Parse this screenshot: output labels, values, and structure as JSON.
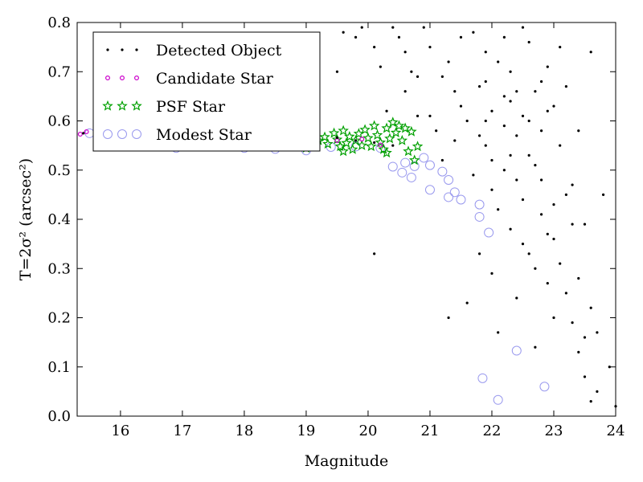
{
  "chart_data": {
    "type": "scatter",
    "title": "",
    "xlabel": "Magnitude",
    "ylabel": "T=2σ² (arcsec²)",
    "xlim": [
      15.3,
      24.0
    ],
    "ylim": [
      0.0,
      0.8
    ],
    "xticks": [
      "16",
      "17",
      "18",
      "19",
      "20",
      "21",
      "22",
      "23",
      "24"
    ],
    "yticks": [
      "0.0",
      "0.1",
      "0.2",
      "0.3",
      "0.4",
      "0.5",
      "0.6",
      "0.7",
      "0.8"
    ],
    "grid": false,
    "legend_position": "top-left",
    "series": [
      {
        "name": "Detected Object",
        "marker": "dot",
        "color": "#000000",
        "points": [
          [
            15.4,
            0.575
          ],
          [
            15.7,
            0.571
          ],
          [
            16.0,
            0.572
          ],
          [
            16.5,
            0.568
          ],
          [
            16.9,
            0.562
          ],
          [
            17.3,
            0.565
          ],
          [
            17.8,
            0.56
          ],
          [
            18.2,
            0.563
          ],
          [
            18.6,
            0.556
          ],
          [
            19.0,
            0.552
          ],
          [
            19.2,
            0.558
          ],
          [
            19.5,
            0.566
          ],
          [
            19.8,
            0.56
          ],
          [
            20.1,
            0.556
          ],
          [
            20.4,
            0.55
          ],
          [
            19.2,
            0.68
          ],
          [
            19.5,
            0.7
          ],
          [
            19.6,
            0.78
          ],
          [
            19.8,
            0.77
          ],
          [
            19.9,
            0.79
          ],
          [
            20.1,
            0.75
          ],
          [
            20.1,
            0.33
          ],
          [
            20.2,
            0.71
          ],
          [
            20.3,
            0.62
          ],
          [
            20.4,
            0.79
          ],
          [
            20.5,
            0.77
          ],
          [
            20.6,
            0.74
          ],
          [
            20.7,
            0.7
          ],
          [
            20.8,
            0.61
          ],
          [
            20.9,
            0.79
          ],
          [
            20.6,
            0.66
          ],
          [
            20.8,
            0.69
          ],
          [
            21.0,
            0.75
          ],
          [
            21.0,
            0.61
          ],
          [
            21.1,
            0.58
          ],
          [
            21.2,
            0.52
          ],
          [
            21.3,
            0.72
          ],
          [
            21.3,
            0.2
          ],
          [
            21.4,
            0.66
          ],
          [
            21.5,
            0.77
          ],
          [
            21.6,
            0.6
          ],
          [
            21.6,
            0.23
          ],
          [
            21.7,
            0.49
          ],
          [
            21.8,
            0.67
          ],
          [
            21.8,
            0.33
          ],
          [
            21.9,
            0.74
          ],
          [
            21.9,
            0.55
          ],
          [
            22.0,
            0.62
          ],
          [
            22.0,
            0.29
          ],
          [
            22.1,
            0.17
          ],
          [
            22.1,
            0.42
          ],
          [
            22.2,
            0.65
          ],
          [
            22.2,
            0.5
          ],
          [
            22.3,
            0.7
          ],
          [
            22.3,
            0.38
          ],
          [
            22.4,
            0.57
          ],
          [
            22.4,
            0.24
          ],
          [
            22.5,
            0.61
          ],
          [
            22.5,
            0.44
          ],
          [
            22.6,
            0.76
          ],
          [
            22.6,
            0.53
          ],
          [
            22.6,
            0.33
          ],
          [
            22.7,
            0.66
          ],
          [
            22.7,
            0.14
          ],
          [
            22.8,
            0.48
          ],
          [
            22.8,
            0.58
          ],
          [
            22.9,
            0.71
          ],
          [
            22.9,
            0.37
          ],
          [
            22.9,
            0.27
          ],
          [
            23.0,
            0.63
          ],
          [
            23.0,
            0.43
          ],
          [
            23.0,
            0.2
          ],
          [
            23.1,
            0.55
          ],
          [
            23.1,
            0.31
          ],
          [
            23.2,
            0.67
          ],
          [
            23.2,
            0.25
          ],
          [
            23.3,
            0.47
          ],
          [
            23.3,
            0.19
          ],
          [
            23.4,
            0.58
          ],
          [
            23.4,
            0.13
          ],
          [
            23.5,
            0.39
          ],
          [
            23.5,
            0.08
          ],
          [
            23.6,
            0.74
          ],
          [
            23.6,
            0.22
          ],
          [
            23.7,
            0.05
          ],
          [
            23.7,
            0.17
          ],
          [
            23.8,
            0.45
          ],
          [
            23.9,
            0.1
          ],
          [
            24.0,
            0.02
          ],
          [
            23.6,
            0.03
          ],
          [
            21.9,
            0.68
          ],
          [
            22.1,
            0.72
          ],
          [
            22.3,
            0.53
          ],
          [
            22.5,
            0.79
          ],
          [
            22.2,
            0.59
          ],
          [
            22.8,
            0.41
          ],
          [
            23.0,
            0.36
          ],
          [
            21.5,
            0.63
          ],
          [
            21.7,
            0.78
          ],
          [
            22.0,
            0.46
          ],
          [
            22.4,
            0.66
          ],
          [
            22.7,
            0.51
          ],
          [
            23.2,
            0.45
          ],
          [
            23.4,
            0.28
          ],
          [
            22.6,
            0.6
          ],
          [
            21.2,
            0.69
          ],
          [
            21.4,
            0.56
          ],
          [
            21.9,
            0.6
          ],
          [
            22.2,
            0.77
          ],
          [
            22.3,
            0.64
          ],
          [
            22.9,
            0.62
          ],
          [
            23.1,
            0.75
          ],
          [
            22.5,
            0.35
          ],
          [
            22.7,
            0.3
          ],
          [
            22.0,
            0.52
          ],
          [
            21.8,
            0.57
          ],
          [
            22.4,
            0.48
          ],
          [
            22.8,
            0.68
          ],
          [
            23.3,
            0.39
          ],
          [
            23.5,
            0.16
          ]
        ]
      },
      {
        "name": "Candidate Star",
        "marker": "ring-small",
        "color": "#cc00cc",
        "points": [
          [
            15.35,
            0.573
          ],
          [
            15.45,
            0.578
          ],
          [
            15.7,
            0.575
          ],
          [
            16.1,
            0.571
          ],
          [
            16.6,
            0.568
          ],
          [
            17.1,
            0.566
          ],
          [
            17.6,
            0.563
          ],
          [
            18.1,
            0.561
          ],
          [
            18.6,
            0.559
          ],
          [
            19.1,
            0.557
          ],
          [
            19.5,
            0.56
          ],
          [
            19.9,
            0.563
          ],
          [
            20.2,
            0.551
          ]
        ]
      },
      {
        "name": "PSF Star",
        "marker": "star",
        "color": "#00a000",
        "points": [
          [
            19.0,
            0.545
          ],
          [
            19.1,
            0.552
          ],
          [
            19.2,
            0.56
          ],
          [
            19.3,
            0.567
          ],
          [
            19.35,
            0.553
          ],
          [
            19.45,
            0.575
          ],
          [
            19.5,
            0.562
          ],
          [
            19.55,
            0.548
          ],
          [
            19.6,
            0.58
          ],
          [
            19.65,
            0.555
          ],
          [
            19.7,
            0.568
          ],
          [
            19.75,
            0.542
          ],
          [
            19.8,
            0.56
          ],
          [
            19.85,
            0.574
          ],
          [
            19.9,
            0.55
          ],
          [
            19.95,
            0.582
          ],
          [
            20.0,
            0.565
          ],
          [
            20.05,
            0.548
          ],
          [
            20.1,
            0.59
          ],
          [
            20.15,
            0.571
          ],
          [
            20.2,
            0.556
          ],
          [
            20.25,
            0.542
          ],
          [
            20.3,
            0.585
          ],
          [
            20.35,
            0.564
          ],
          [
            20.4,
            0.597
          ],
          [
            20.45,
            0.576
          ],
          [
            20.5,
            0.59
          ],
          [
            20.55,
            0.56
          ],
          [
            20.6,
            0.585
          ],
          [
            20.65,
            0.538
          ],
          [
            20.7,
            0.578
          ],
          [
            20.75,
            0.52
          ],
          [
            20.8,
            0.548
          ],
          [
            20.3,
            0.535
          ],
          [
            19.6,
            0.538
          ]
        ]
      },
      {
        "name": "Modest Star",
        "marker": "ring-large",
        "color": "#9999ee",
        "points": [
          [
            15.5,
            0.575
          ],
          [
            15.9,
            0.578
          ],
          [
            16.2,
            0.57
          ],
          [
            16.9,
            0.545
          ],
          [
            17.4,
            0.548
          ],
          [
            18.0,
            0.545
          ],
          [
            18.5,
            0.543
          ],
          [
            19.0,
            0.54
          ],
          [
            19.4,
            0.547
          ],
          [
            19.8,
            0.548
          ],
          [
            20.2,
            0.545
          ],
          [
            20.4,
            0.507
          ],
          [
            20.55,
            0.495
          ],
          [
            20.6,
            0.515
          ],
          [
            20.7,
            0.485
          ],
          [
            20.75,
            0.508
          ],
          [
            20.9,
            0.525
          ],
          [
            21.0,
            0.51
          ],
          [
            21.0,
            0.46
          ],
          [
            21.2,
            0.497
          ],
          [
            21.3,
            0.48
          ],
          [
            21.3,
            0.445
          ],
          [
            21.4,
            0.455
          ],
          [
            21.5,
            0.44
          ],
          [
            21.8,
            0.43
          ],
          [
            21.8,
            0.405
          ],
          [
            21.95,
            0.373
          ],
          [
            21.85,
            0.077
          ],
          [
            22.1,
            0.033
          ],
          [
            22.4,
            0.133
          ],
          [
            22.85,
            0.06
          ]
        ]
      }
    ]
  }
}
